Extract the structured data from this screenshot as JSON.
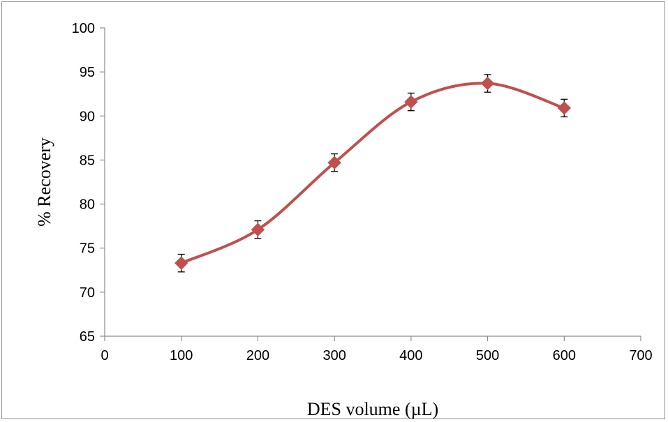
{
  "chart_data": {
    "type": "line",
    "smoothed": true,
    "xlabel": "DES volume (µL)",
    "ylabel": "% Recovery",
    "xlim": [
      0,
      700
    ],
    "ylim": [
      65,
      100
    ],
    "x_ticks": [
      0,
      100,
      200,
      300,
      400,
      500,
      600,
      700
    ],
    "y_ticks": [
      65,
      70,
      75,
      80,
      85,
      90,
      95,
      100
    ],
    "grid": false,
    "legend": "none",
    "marker": "diamond",
    "series": [
      {
        "x": [
          100,
          200,
          300,
          400,
          500,
          600
        ],
        "values": [
          73.3,
          77.1,
          84.7,
          91.6,
          93.7,
          90.9
        ],
        "error": [
          1.0,
          1.0,
          1.0,
          1.0,
          1.0,
          1.0
        ],
        "color": "#c0504d"
      }
    ]
  }
}
